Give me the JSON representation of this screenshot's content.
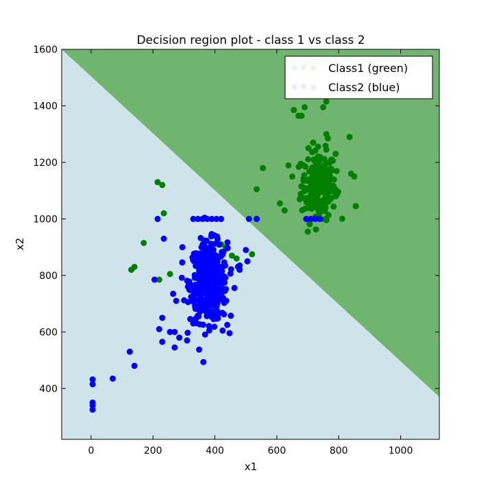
{
  "chart_data": {
    "type": "scatter",
    "title": "Decision region plot - class 1 vs class 2",
    "xlabel": "x1",
    "ylabel": "x2",
    "xlim": [
      -95,
      1125
    ],
    "ylim": [
      220,
      1600
    ],
    "xticks": [
      0,
      200,
      400,
      600,
      800,
      1000
    ],
    "yticks": [
      400,
      600,
      800,
      1000,
      1200,
      1400,
      1600
    ],
    "grid": false,
    "legend_position": "top-right",
    "decision_boundary": {
      "description_points": [
        [
          -95,
          1600
        ],
        [
          1125,
          370
        ]
      ],
      "upper_region_class": "Class1 (green)",
      "lower_region_class": "Class2 (blue)",
      "upper_region_color": "#6fb56f",
      "lower_region_color": "#cfe3ea"
    },
    "series": [
      {
        "name": "Class1 (green)",
        "color": "#007f00",
        "cluster": {
          "center": [
            735,
            1120
          ],
          "spread": [
            28,
            60
          ],
          "count": 220
        },
        "points": [
          [
            655,
            1385
          ],
          [
            670,
            1365
          ],
          [
            680,
            1365
          ],
          [
            690,
            1395
          ],
          [
            750,
            1395
          ],
          [
            760,
            1415
          ],
          [
            760,
            1300
          ],
          [
            765,
            1285
          ],
          [
            835,
            1290
          ],
          [
            790,
            1230
          ],
          [
            555,
            1180
          ],
          [
            535,
            1105
          ],
          [
            610,
            1055
          ],
          [
            625,
            1030
          ],
          [
            650,
            1150
          ],
          [
            840,
            1160
          ],
          [
            850,
            1150
          ],
          [
            855,
            1045
          ],
          [
            700,
            955
          ],
          [
            760,
            1245
          ],
          [
            770,
            1200
          ],
          [
            790,
            1080
          ],
          [
            215,
            1130
          ],
          [
            230,
            1120
          ],
          [
            235,
            1020
          ],
          [
            170,
            915
          ],
          [
            140,
            830
          ],
          [
            130,
            820
          ],
          [
            220,
            785
          ],
          [
            255,
            805
          ],
          [
            350,
            835
          ],
          [
            420,
            910
          ],
          [
            435,
            900
          ],
          [
            455,
            870
          ],
          [
            520,
            875
          ],
          [
            470,
            860
          ]
        ]
      },
      {
        "name": "Class2 (blue)",
        "color": "#0000ff",
        "cluster": {
          "center": [
            380,
            775
          ],
          "spread": [
            30,
            70
          ],
          "count": 420
        },
        "points": [
          [
            330,
            1000
          ],
          [
            345,
            1000
          ],
          [
            360,
            1000
          ],
          [
            375,
            1000
          ],
          [
            390,
            1000
          ],
          [
            405,
            1000
          ],
          [
            420,
            1000
          ],
          [
            215,
            1000
          ],
          [
            510,
            1000
          ],
          [
            535,
            1000
          ],
          [
            695,
            1000
          ],
          [
            710,
            1000
          ],
          [
            725,
            1000
          ],
          [
            740,
            1000
          ],
          [
            235,
            930
          ],
          [
            295,
            900
          ],
          [
            500,
            890
          ],
          [
            480,
            835
          ],
          [
            505,
            850
          ],
          [
            480,
            820
          ],
          [
            205,
            785
          ],
          [
            265,
            735
          ],
          [
            275,
            710
          ],
          [
            230,
            650
          ],
          [
            220,
            610
          ],
          [
            255,
            600
          ],
          [
            270,
            600
          ],
          [
            285,
            580
          ],
          [
            310,
            570
          ],
          [
            230,
            565
          ],
          [
            270,
            545
          ],
          [
            440,
            625
          ],
          [
            425,
            605
          ],
          [
            125,
            530
          ],
          [
            140,
            480
          ],
          [
            70,
            435
          ],
          [
            5,
            432
          ],
          [
            5,
            415
          ],
          [
            5,
            350
          ],
          [
            5,
            340
          ],
          [
            5,
            325
          ]
        ]
      }
    ]
  }
}
